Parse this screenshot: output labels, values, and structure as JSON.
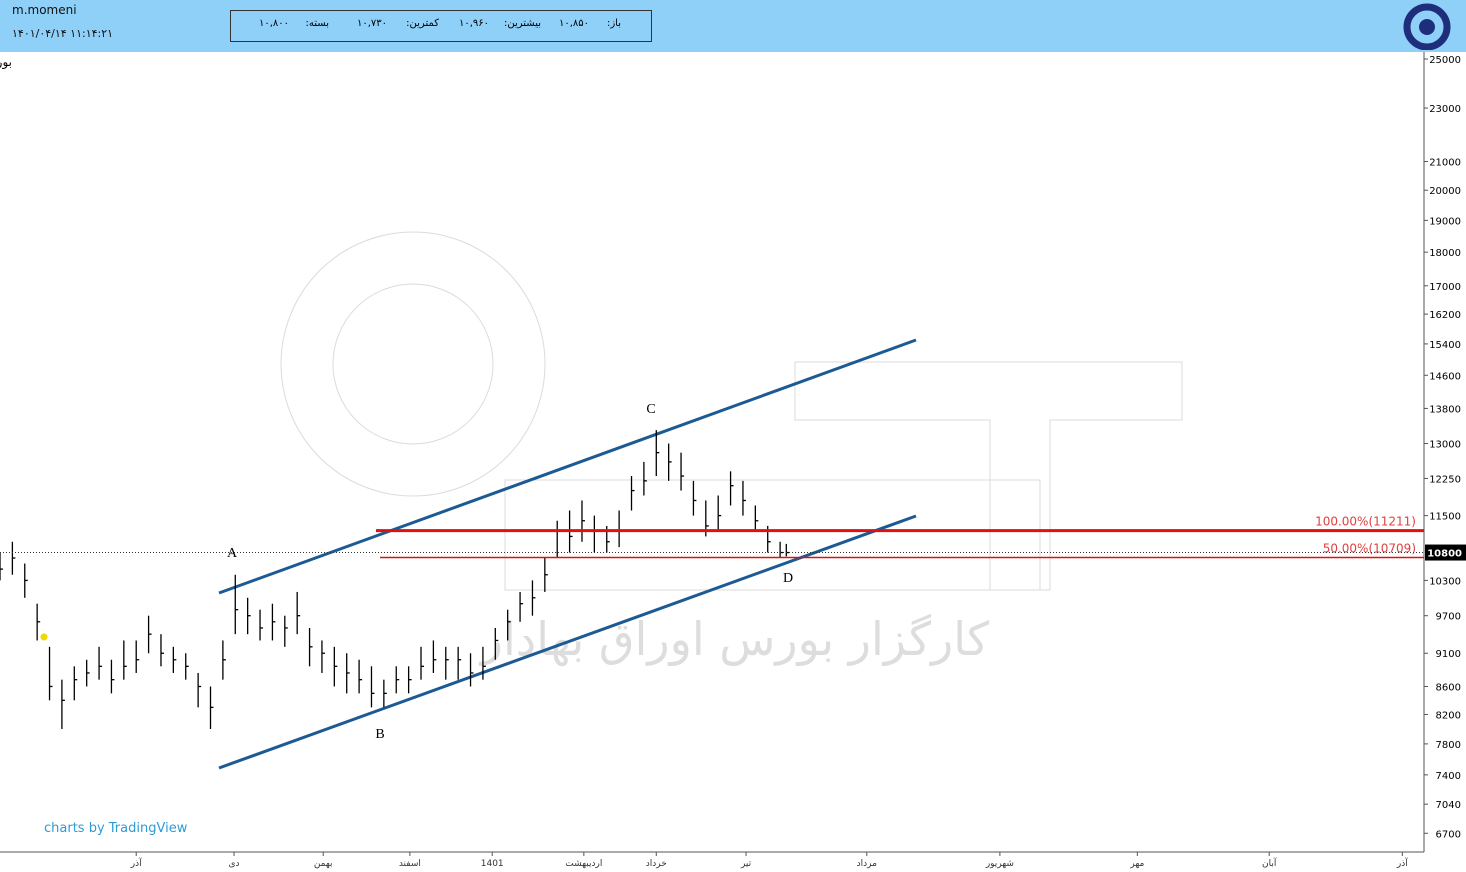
{
  "header": {
    "user": "m.momeni",
    "datetime": "۱۴۰۱/۰۴/۱۴ ۱۱:۱۴:۲۱",
    "open_label": "باز:",
    "open": "۱۰,۸۵۰",
    "high_label": "بیشترین:",
    "high": "۱۰,۹۶۰",
    "low_label": "کمترین:",
    "low": "۱۰,۷۳۰",
    "close_label": "بسته:",
    "close": "۱۰,۸۰۰"
  },
  "footer": {
    "credit": "charts by TradingView",
    "watermark": "کارگزار بورس اوراق بهادار"
  },
  "chart_data": {
    "type": "ohlc",
    "title": "بورس,D,کهمدا-شیشه همدان",
    "color": "#000000",
    "log_scale": true,
    "x": [
      0,
      2,
      4,
      6,
      8,
      10,
      12,
      14,
      16,
      18,
      20,
      22,
      24,
      26,
      28,
      30,
      32,
      34,
      36,
      38,
      40,
      42,
      44,
      46,
      48,
      50,
      52,
      54,
      56,
      58,
      60,
      62,
      64,
      66,
      68,
      70,
      72,
      74,
      76,
      78,
      80,
      82,
      84,
      86,
      88,
      90,
      92,
      94,
      96,
      98,
      100,
      102,
      104,
      106,
      108,
      110,
      112,
      114,
      116,
      118,
      120,
      122,
      124,
      126,
      127
    ],
    "high": [
      10800,
      11000,
      10600,
      9900,
      9200,
      8700,
      8900,
      9000,
      9200,
      9000,
      9300,
      9300,
      9700,
      9400,
      9200,
      9100,
      8800,
      8600,
      9300,
      10400,
      10000,
      9800,
      9900,
      9700,
      10100,
      9500,
      9300,
      9200,
      9100,
      9000,
      8900,
      8700,
      8900,
      8900,
      9200,
      9300,
      9200,
      9200,
      9100,
      9200,
      9500,
      9800,
      10100,
      10300,
      10700,
      11400,
      11600,
      11800,
      11500,
      11300,
      11600,
      12300,
      12600,
      13300,
      13000,
      12800,
      12200,
      11800,
      11900,
      12400,
      12200,
      11700,
      11300,
      11000,
      10960
    ],
    "low": [
      10300,
      10400,
      10000,
      9300,
      8400,
      8000,
      8400,
      8600,
      8700,
      8500,
      8700,
      8800,
      9100,
      8900,
      8800,
      8700,
      8300,
      8000,
      8700,
      9400,
      9400,
      9300,
      9300,
      9200,
      9400,
      8900,
      8800,
      8600,
      8500,
      8500,
      8300,
      8300,
      8500,
      8500,
      8700,
      8800,
      8700,
      8700,
      8600,
      8700,
      9000,
      9300,
      9600,
      9700,
      10100,
      10700,
      10800,
      11000,
      10800,
      10800,
      10900,
      11600,
      11900,
      12300,
      12200,
      12000,
      11500,
      11100,
      11200,
      11700,
      11500,
      11200,
      10800,
      10700,
      10730
    ],
    "close": [
      10500,
      10700,
      10300,
      9600,
      8600,
      8400,
      8700,
      8800,
      8900,
      8700,
      8900,
      9000,
      9400,
      9100,
      9000,
      8900,
      8600,
      8300,
      9000,
      9800,
      9700,
      9500,
      9600,
      9500,
      9700,
      9200,
      9100,
      8900,
      8800,
      8700,
      8500,
      8500,
      8700,
      8700,
      8900,
      9000,
      9000,
      9000,
      8800,
      8900,
      9300,
      9600,
      9900,
      10000,
      10400,
      11200,
      11100,
      11400,
      11200,
      11000,
      11200,
      12000,
      12200,
      12800,
      12600,
      12300,
      11800,
      11300,
      11500,
      12100,
      11800,
      11400,
      11000,
      10800,
      10800
    ],
    "last_price": 10800,
    "xlim": [
      0,
      230
    ],
    "xticks": [
      {
        "value": 22,
        "label": "آذر"
      },
      {
        "value": 37.8,
        "label": "دی"
      },
      {
        "value": 52.2,
        "label": "بهمن"
      },
      {
        "value": 66.2,
        "label": "اسفند"
      },
      {
        "value": 79.5,
        "label": "1401"
      },
      {
        "value": 94.3,
        "label": "اردیبهشت"
      },
      {
        "value": 106,
        "label": "خرداد"
      },
      {
        "value": 120.5,
        "label": "تیر"
      },
      {
        "value": 140,
        "label": "مرداد"
      },
      {
        "value": 161.5,
        "label": "شهریور"
      },
      {
        "value": 183.7,
        "label": "مهر"
      },
      {
        "value": 205,
        "label": "آبان"
      },
      {
        "value": 226.5,
        "label": "آذر"
      }
    ],
    "ylim": [
      6490,
      25300
    ],
    "yticks": [
      25000,
      23000,
      21000,
      20000,
      19000,
      18000,
      17000,
      16200,
      15400,
      14600,
      13800,
      13000,
      12250,
      11500,
      10300,
      9700,
      9100,
      8600,
      8200,
      7800,
      7400,
      7040,
      6700
    ],
    "fib_levels": [
      {
        "value": 11211,
        "label": "100.00%(11211)"
      },
      {
        "value": 10709,
        "label": "50.00%(10709)"
      }
    ],
    "annotations": [
      "A",
      "B",
      "C",
      "D"
    ]
  }
}
